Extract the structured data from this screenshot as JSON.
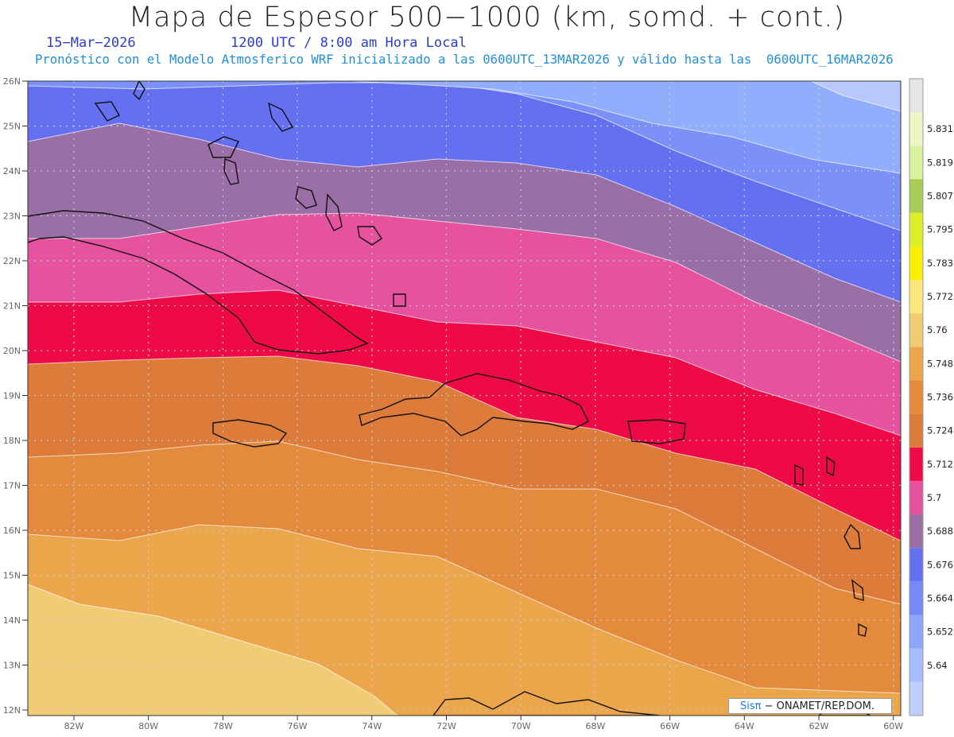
{
  "header": {
    "title": "Mapa de Espesor 500−1000 (km, somd. + cont.)",
    "date": "15−Mar−2026",
    "time": "1200 UTC / 8:00 am Hora Local",
    "subtitle": "Pronóstico con el Modelo Atmosferico WRF inicializado a las 0600UTC_13MAR2026 y válido hasta las  0600UTC_16MAR2026"
  },
  "map": {
    "lat_labels": [
      "26N",
      "25N",
      "24N",
      "23N",
      "22N",
      "21N",
      "20N",
      "19N",
      "18N",
      "17N",
      "16N",
      "15N",
      "14N",
      "13N",
      "12N"
    ],
    "lon_labels": [
      "82W",
      "80W",
      "78W",
      "76W",
      "74W",
      "72W",
      "70W",
      "68W",
      "66W",
      "64W",
      "62W",
      "60W"
    ],
    "band_colors": [
      "#f2cc74",
      "#eba54a",
      "#e38a3c",
      "#dc7b3a",
      "#ee0a46",
      "#e7529e",
      "#9a6ea6",
      "#6470f0",
      "#7b91f7",
      "#91aefd",
      "#b8c8fd"
    ]
  },
  "colorbar": {
    "labels": [
      "5.64",
      "5.652",
      "5.664",
      "5.676",
      "5.688",
      "5.7",
      "5.712",
      "5.724",
      "5.736",
      "5.748",
      "5.76",
      "5.772",
      "5.783",
      "5.795",
      "5.807",
      "5.819",
      "5.831"
    ],
    "colors": [
      "#c0cdfd",
      "#a8bdfd",
      "#8fa6fb",
      "#7589f7",
      "#6470f0",
      "#9a6ea6",
      "#e7529e",
      "#ee0a46",
      "#dc7b3a",
      "#e38a3c",
      "#eba54a",
      "#f2cc74",
      "#fde87c",
      "#fbee05",
      "#dbee28",
      "#a8cc58",
      "#d8f19a",
      "#eef6c5",
      "#e6e6e6"
    ]
  },
  "credit": {
    "brand": "Sisπ",
    "text": " − ONAMET/REP.DOM."
  }
}
